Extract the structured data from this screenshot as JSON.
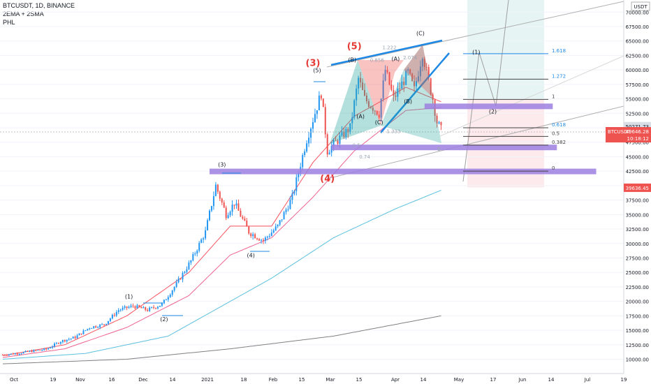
{
  "header": {
    "symbol_line": "BTCUSDT, 1D, BINANCE",
    "indicators": "2EMA + 2SMA",
    "study": "PHL"
  },
  "quote_currency_label": "USDT",
  "price_tags": {
    "current_price": "50271.73",
    "symbol": "BTCUSDT",
    "last_price": "49646.28",
    "countdown": "10:18:12",
    "low_marker": "39636.45"
  },
  "colors": {
    "bull": "#26a69a",
    "bear": "#ef5350",
    "candle_up": "#2196f3",
    "candle_down": "#ef5350",
    "ema_fast": "#f7525f",
    "ema_slow": "#f06292",
    "sma_cyan": "#5bc0de",
    "sma_grey": "#808080",
    "zone": "#9c7fe0",
    "trend_blue": "#1e88e5",
    "wave_red": "#e53935"
  },
  "chart_data": {
    "type": "candlestick",
    "title": "BTCUSDT, 1D, BINANCE",
    "x_tick_labels": [
      "Oct",
      "19",
      "Nov",
      "16",
      "Dec",
      "14",
      "2021",
      "18",
      "Feb",
      "15",
      "Mar",
      "15",
      "Apr",
      "14",
      "May",
      "17",
      "Jun",
      "14",
      "Jul",
      "19"
    ],
    "y_tick_labels": [
      "70000.00",
      "67500.00",
      "65000.00",
      "62500.00",
      "60000.00",
      "57500.00",
      "55000.00",
      "52500.00",
      "50000.00",
      "47500.00",
      "45000.00",
      "42500.00",
      "40000.00",
      "37500.00",
      "35000.00",
      "32500.00",
      "30000.00",
      "27500.00",
      "25000.00",
      "22500.00",
      "20000.00",
      "17500.00",
      "15000.00",
      "12500.00",
      "10000.00"
    ],
    "ylim": [
      9500,
      72000
    ],
    "close_path": [
      [
        0,
        10800
      ],
      [
        7,
        11000
      ],
      [
        14,
        11400
      ],
      [
        21,
        11700
      ],
      [
        28,
        13100
      ],
      [
        35,
        13800
      ],
      [
        42,
        15500
      ],
      [
        49,
        16000
      ],
      [
        56,
        18500
      ],
      [
        63,
        19200
      ],
      [
        70,
        18500
      ],
      [
        77,
        19500
      ],
      [
        84,
        23000
      ],
      [
        91,
        27000
      ],
      [
        98,
        32000
      ],
      [
        103,
        40000
      ],
      [
        108,
        35000
      ],
      [
        112,
        37000
      ],
      [
        119,
        32000
      ],
      [
        126,
        30500
      ],
      [
        133,
        33000
      ],
      [
        140,
        38000
      ],
      [
        147,
        48000
      ],
      [
        154,
        56000
      ],
      [
        157,
        46000
      ],
      [
        161,
        47500
      ],
      [
        168,
        50000
      ],
      [
        172,
        58500
      ],
      [
        175,
        55000
      ],
      [
        182,
        52500
      ],
      [
        185,
        60000
      ],
      [
        189,
        55000
      ],
      [
        196,
        59500
      ],
      [
        199,
        56500
      ],
      [
        203,
        63000
      ],
      [
        206,
        58000
      ],
      [
        208,
        55000
      ],
      [
        210,
        51000
      ],
      [
        212,
        49646
      ]
    ],
    "lines": {
      "ema_fast": [
        [
          0,
          10600
        ],
        [
          30,
          12500
        ],
        [
          60,
          17500
        ],
        [
          90,
          25000
        ],
        [
          110,
          33000
        ],
        [
          130,
          33000
        ],
        [
          150,
          44000
        ],
        [
          170,
          52000
        ],
        [
          195,
          57000
        ],
        [
          212,
          54500
        ]
      ],
      "ema_slow": [
        [
          0,
          10300
        ],
        [
          30,
          11800
        ],
        [
          60,
          15500
        ],
        [
          90,
          21000
        ],
        [
          110,
          28000
        ],
        [
          130,
          31000
        ],
        [
          150,
          38000
        ],
        [
          170,
          46000
        ],
        [
          195,
          53000
        ],
        [
          212,
          53500
        ]
      ],
      "sma_cyan": [
        [
          0,
          10000
        ],
        [
          40,
          11000
        ],
        [
          80,
          14000
        ],
        [
          110,
          20000
        ],
        [
          130,
          24000
        ],
        [
          160,
          31000
        ],
        [
          190,
          36000
        ],
        [
          212,
          39200
        ]
      ],
      "sma_grey": [
        [
          0,
          9200
        ],
        [
          60,
          10000
        ],
        [
          110,
          11800
        ],
        [
          160,
          14000
        ],
        [
          212,
          17500
        ]
      ]
    },
    "zones": [
      {
        "x0": 100,
        "x1": 287,
        "y": 42450,
        "label": "0"
      },
      {
        "x0": 159,
        "x1": 268,
        "y": 46600,
        "label": "0.382"
      },
      {
        "x0": 204,
        "x1": 266,
        "y": 53700,
        "label": ""
      }
    ],
    "fib_levels": [
      {
        "label": "1.618",
        "y": 62800
      },
      {
        "label": "1.272",
        "y": 58400
      },
      {
        "label": "1",
        "y": 54900
      },
      {
        "label": "0.618",
        "y": 50000
      },
      {
        "label": "0.5",
        "y": 48500
      },
      {
        "label": "0.382",
        "y": 47000
      },
      {
        "label": "0",
        "y": 42500
      }
    ],
    "wave_labels_black": [
      {
        "text": "(1)",
        "x": 61,
        "y": 20500
      },
      {
        "text": "(2)",
        "x": 78,
        "y": 16600
      },
      {
        "text": "(3)",
        "x": 106,
        "y": 43300
      },
      {
        "text": "(4)",
        "x": 120,
        "y": 27600
      },
      {
        "text": "(5)",
        "x": 152,
        "y": 59600
      },
      {
        "text": "(A)",
        "x": 173,
        "y": 51600
      },
      {
        "text": "(B)",
        "x": 169,
        "y": 61400
      },
      {
        "text": "(A)",
        "x": 190,
        "y": 61600
      },
      {
        "text": "(B)",
        "x": 196,
        "y": 54200
      },
      {
        "text": "(C)",
        "x": 182,
        "y": 50600
      },
      {
        "text": "(C)",
        "x": 202,
        "y": 66000
      },
      {
        "text": "(1)",
        "x": 229,
        "y": 62700
      },
      {
        "text": "(2)",
        "x": 237,
        "y": 52500
      }
    ],
    "wave_labels_red": [
      {
        "text": "(3)",
        "x": 150,
        "y": 60700
      },
      {
        "text": "(4)",
        "x": 157,
        "y": 40700
      },
      {
        "text": "(5)",
        "x": 170,
        "y": 63600
      }
    ],
    "harmonic_labels": [
      {
        "text": "1.222",
        "x": 187,
        "y": 63600
      },
      {
        "text": "2.074",
        "x": 197,
        "y": 61800
      },
      {
        "text": "0.856",
        "x": 181,
        "y": 61400
      },
      {
        "text": "1.333",
        "x": 189,
        "y": 49100
      },
      {
        "text": "0.74",
        "x": 175,
        "y": 44700
      },
      {
        "text": "0.5",
        "x": 171,
        "y": 46700
      },
      {
        "text": "B",
        "x": 211,
        "y": 46000
      }
    ]
  }
}
